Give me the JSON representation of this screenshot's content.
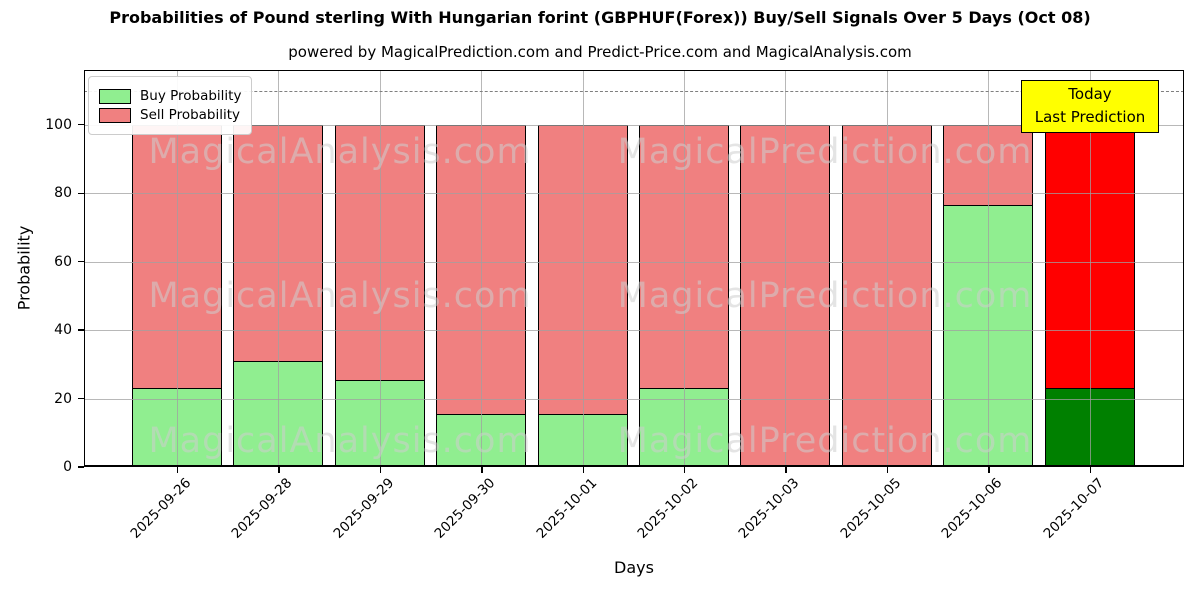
{
  "title": "Probabilities of Pound sterling With Hungarian forint (GBPHUF(Forex)) Buy/Sell Signals Over 5 Days (Oct 08)",
  "subtitle": "powered by MagicalPrediction.com and Predict-Price.com and MagicalAnalysis.com",
  "legend": {
    "items": [
      {
        "label": "Buy Probability",
        "color": "#90EE90"
      },
      {
        "label": "Sell Probability",
        "color": "#F08080"
      }
    ]
  },
  "annotation": {
    "line1": "Today",
    "line2": "Last Prediction",
    "bg_color": "#FFFF00"
  },
  "watermarks": {
    "left": "MagicalAnalysis.com",
    "right": "MagicalPrediction.com"
  },
  "colors": {
    "buy": "#90EE90",
    "sell": "#F08080",
    "today_buy": "#008000",
    "today_sell": "#FF0000",
    "grid": "#a0a0a0",
    "dashed_line": "#7f7f7f"
  },
  "chart_data": {
    "type": "bar",
    "stacked": true,
    "title": "Probabilities of Pound sterling With Hungarian forint (GBPHUF(Forex)) Buy/Sell Signals Over 5 Days (Oct 08)",
    "xlabel": "Days",
    "ylabel": "Probability",
    "categories": [
      "2025-09-26",
      "2025-09-28",
      "2025-09-29",
      "2025-09-30",
      "2025-10-01",
      "2025-10-02",
      "2025-10-03",
      "2025-10-05",
      "2025-10-06",
      "2025-10-07"
    ],
    "series": [
      {
        "name": "Buy Probability",
        "color": "#90EE90",
        "values": [
          23,
          31,
          25.5,
          15.5,
          15.5,
          23,
          0,
          0,
          76.5,
          23
        ]
      },
      {
        "name": "Sell Probability",
        "color": "#F08080",
        "values": [
          77,
          69,
          74.5,
          84.5,
          84.5,
          77,
          100,
          100,
          23.5,
          77
        ]
      }
    ],
    "today_index": 9,
    "today_colors": {
      "buy": "#008000",
      "sell": "#FF0000"
    },
    "ylim": [
      0,
      116
    ],
    "yticks": [
      0,
      20,
      40,
      60,
      80,
      100
    ],
    "dashed_line_y": 110,
    "grid": true,
    "legend_position": "upper left",
    "bar_total": 100
  }
}
